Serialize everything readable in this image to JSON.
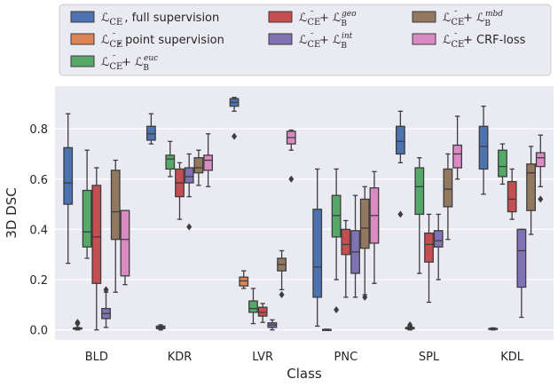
{
  "chart_data": {
    "type": "boxplot",
    "xlabel": "Class",
    "ylabel": "3D DSC",
    "ylim": [
      -0.04,
      0.97
    ],
    "yticks": [
      0.0,
      0.2,
      0.4,
      0.6,
      0.8
    ],
    "ytick_labels": [
      "0.0",
      "0.2",
      "0.4",
      "0.6",
      "0.8"
    ],
    "categories": [
      "BLD",
      "KDR",
      "LVR",
      "PNC",
      "SPL",
      "KDL"
    ],
    "legend_placement": "top",
    "series": [
      {
        "name": "L_CE, full supervision",
        "legend": {
          "base": "ℒ",
          "sub": "CE",
          "sup": "",
          "suffix": ", full supervision"
        },
        "color": "#4c72b0",
        "boxes": [
          {
            "min": 0.265,
            "q1": 0.5,
            "median": 0.585,
            "q3": 0.725,
            "max": 0.86,
            "outliers": []
          },
          {
            "min": 0.74,
            "q1": 0.755,
            "median": 0.78,
            "q3": 0.81,
            "max": 0.86,
            "outliers": []
          },
          {
            "min": 0.87,
            "q1": 0.89,
            "median": 0.905,
            "q3": 0.92,
            "max": 0.925,
            "outliers": [
              0.77
            ]
          },
          {
            "min": 0.015,
            "q1": 0.13,
            "median": 0.25,
            "q3": 0.48,
            "max": 0.64,
            "outliers": []
          },
          {
            "min": 0.665,
            "q1": 0.7,
            "median": 0.75,
            "q3": 0.81,
            "max": 0.87,
            "outliers": [
              0.46
            ]
          },
          {
            "min": 0.54,
            "q1": 0.64,
            "median": 0.73,
            "q3": 0.81,
            "max": 0.89,
            "outliers": []
          }
        ]
      },
      {
        "name": "L_CE~, point supervision",
        "legend": {
          "base": "ℒ",
          "sub": "CE~",
          "sup": "",
          "suffix": ", point supervision"
        },
        "color": "#dd8452",
        "boxes": [
          {
            "min": 0.0,
            "q1": 0.003,
            "median": 0.005,
            "q3": 0.008,
            "max": 0.01,
            "outliers": [
              0.025,
              0.03
            ]
          },
          {
            "min": 0.0,
            "q1": 0.005,
            "median": 0.01,
            "q3": 0.015,
            "max": 0.02,
            "outliers": [
              0.01
            ]
          },
          {
            "min": 0.165,
            "q1": 0.175,
            "median": 0.195,
            "q3": 0.21,
            "max": 0.235,
            "outliers": []
          },
          {
            "min": 0.0,
            "q1": 0.0,
            "median": 0.0,
            "q3": 0.002,
            "max": 0.003,
            "outliers": []
          },
          {
            "min": 0.0,
            "q1": 0.004,
            "median": 0.007,
            "q3": 0.01,
            "max": 0.012,
            "outliers": [
              0.015,
              0.02
            ]
          },
          {
            "min": 0.0,
            "q1": 0.002,
            "median": 0.004,
            "q3": 0.006,
            "max": 0.008,
            "outliers": []
          }
        ]
      },
      {
        "name": "L_CE~ + L_B^euc",
        "legend": {
          "base": "ℒ",
          "sub": "CE~",
          "sup": "euc",
          "suffix": ""
        },
        "color": "#55a868",
        "boxes": [
          {
            "min": 0.285,
            "q1": 0.33,
            "median": 0.39,
            "q3": 0.555,
            "max": 0.715,
            "outliers": []
          },
          {
            "min": 0.61,
            "q1": 0.64,
            "median": 0.68,
            "q3": 0.695,
            "max": 0.75,
            "outliers": []
          },
          {
            "min": 0.025,
            "q1": 0.07,
            "median": 0.085,
            "q3": 0.115,
            "max": 0.165,
            "outliers": []
          },
          {
            "min": 0.2,
            "q1": 0.37,
            "median": 0.455,
            "q3": 0.535,
            "max": 0.64,
            "outliers": [
              0.08
            ]
          },
          {
            "min": 0.225,
            "q1": 0.46,
            "median": 0.57,
            "q3": 0.645,
            "max": 0.685,
            "outliers": []
          },
          {
            "min": 0.58,
            "q1": 0.61,
            "median": 0.65,
            "q3": 0.715,
            "max": 0.74,
            "outliers": []
          }
        ]
      },
      {
        "name": "L_CE~ + L_B^geo",
        "legend": {
          "base": "ℒ",
          "sub": "CE~",
          "sup": "geo",
          "suffix": ""
        },
        "color": "#c44e52",
        "boxes": [
          {
            "min": 0.0,
            "q1": 0.185,
            "median": 0.37,
            "q3": 0.575,
            "max": 0.645,
            "outliers": []
          },
          {
            "min": 0.44,
            "q1": 0.53,
            "median": 0.585,
            "q3": 0.64,
            "max": 0.665,
            "outliers": []
          },
          {
            "min": 0.03,
            "q1": 0.055,
            "median": 0.07,
            "q3": 0.09,
            "max": 0.105,
            "outliers": []
          },
          {
            "min": 0.13,
            "q1": 0.3,
            "median": 0.34,
            "q3": 0.4,
            "max": 0.435,
            "outliers": []
          },
          {
            "min": 0.11,
            "q1": 0.27,
            "median": 0.34,
            "q3": 0.385,
            "max": 0.46,
            "outliers": []
          },
          {
            "min": 0.44,
            "q1": 0.47,
            "median": 0.52,
            "q3": 0.59,
            "max": 0.64,
            "outliers": []
          }
        ]
      },
      {
        "name": "L_CE~ + L_B^int",
        "legend": {
          "base": "ℒ",
          "sub": "CE~",
          "sup": "int",
          "suffix": ""
        },
        "color": "#8172b3",
        "boxes": [
          {
            "min": 0.01,
            "q1": 0.045,
            "median": 0.065,
            "q3": 0.085,
            "max": 0.15,
            "outliers": [
              0.16
            ]
          },
          {
            "min": 0.53,
            "q1": 0.585,
            "median": 0.61,
            "q3": 0.645,
            "max": 0.7,
            "outliers": [
              0.41
            ]
          },
          {
            "min": 0.0,
            "q1": 0.01,
            "median": 0.02,
            "q3": 0.028,
            "max": 0.04,
            "outliers": []
          },
          {
            "min": 0.13,
            "q1": 0.225,
            "median": 0.31,
            "q3": 0.395,
            "max": 0.535,
            "outliers": []
          },
          {
            "min": 0.2,
            "q1": 0.33,
            "median": 0.355,
            "q3": 0.395,
            "max": 0.46,
            "outliers": []
          },
          {
            "min": 0.05,
            "q1": 0.17,
            "median": 0.315,
            "q3": 0.4,
            "max": 0.4,
            "outliers": []
          }
        ]
      },
      {
        "name": "L_CE~ + L_B^mbd",
        "legend": {
          "base": "ℒ",
          "sub": "CE~",
          "sup": "mbd",
          "suffix": ""
        },
        "color": "#937860",
        "boxes": [
          {
            "min": 0.15,
            "q1": 0.36,
            "median": 0.47,
            "q3": 0.635,
            "max": 0.675,
            "outliers": []
          },
          {
            "min": 0.575,
            "q1": 0.625,
            "median": 0.645,
            "q3": 0.685,
            "max": 0.715,
            "outliers": []
          },
          {
            "min": 0.16,
            "q1": 0.235,
            "median": 0.26,
            "q3": 0.285,
            "max": 0.315,
            "outliers": [
              0.14
            ]
          },
          {
            "min": 0.14,
            "q1": 0.325,
            "median": 0.405,
            "q3": 0.52,
            "max": 0.57,
            "outliers": [
              0.13
            ]
          },
          {
            "min": 0.36,
            "q1": 0.49,
            "median": 0.56,
            "q3": 0.64,
            "max": 0.7,
            "outliers": []
          },
          {
            "min": 0.38,
            "q1": 0.475,
            "median": 0.625,
            "q3": 0.66,
            "max": 0.73,
            "outliers": []
          }
        ]
      },
      {
        "name": "L_CE~ + CRF-loss",
        "legend": {
          "base": "ℒ",
          "sub": "CE~",
          "sup": "",
          "suffix": " + CRF-loss"
        },
        "color": "#da8bc3",
        "boxes": [
          {
            "min": 0.18,
            "q1": 0.215,
            "median": 0.36,
            "q3": 0.475,
            "max": 0.475,
            "outliers": []
          },
          {
            "min": 0.57,
            "q1": 0.635,
            "median": 0.675,
            "q3": 0.695,
            "max": 0.78,
            "outliers": []
          },
          {
            "min": 0.715,
            "q1": 0.74,
            "median": 0.765,
            "q3": 0.79,
            "max": 0.795,
            "outliers": [
              0.6
            ]
          },
          {
            "min": 0.185,
            "q1": 0.345,
            "median": 0.455,
            "q3": 0.565,
            "max": 0.63,
            "outliers": []
          },
          {
            "min": 0.6,
            "q1": 0.645,
            "median": 0.7,
            "q3": 0.735,
            "max": 0.85,
            "outliers": []
          },
          {
            "min": 0.57,
            "q1": 0.65,
            "median": 0.685,
            "q3": 0.705,
            "max": 0.775,
            "outliers": [
              0.52
            ]
          }
        ]
      }
    ]
  }
}
